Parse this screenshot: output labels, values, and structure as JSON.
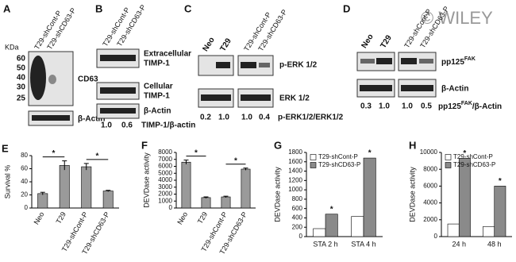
{
  "blots": {
    "A": {
      "panel": "A",
      "lanes": [
        "T29-shCont-P",
        "T29-shCD63-P"
      ],
      "unit": "KDa",
      "markers": [
        "60",
        "50",
        "40",
        "30",
        "25"
      ],
      "rows": [
        "CD63",
        "β-Actin"
      ]
    },
    "B": {
      "panel": "B",
      "lanes": [
        "T29-shCont-P",
        "T29-shCD63-P"
      ],
      "rows": [
        [
          "Extracellular",
          "TIMP-1"
        ],
        [
          "Cellular",
          "TIMP-1"
        ],
        [
          "β-Actin"
        ]
      ],
      "ratios": [
        "1.0",
        "0.6"
      ],
      "ratio_label": "TIMP-1/β-actin"
    },
    "C": {
      "panel": "C",
      "lanes": [
        "Neo",
        "T29",
        "T29-shCont-P",
        "T29-shCD63-P"
      ],
      "rows": [
        "p-ERK 1/2",
        "ERK 1/2"
      ],
      "ratios": [
        "0.2",
        "1.0",
        "1.0",
        "0.4"
      ],
      "ratio_label": "p-ERK1/2/ERK1/2"
    },
    "D": {
      "panel": "D",
      "lanes": [
        "Neo",
        "T29",
        "T29-shCont-P",
        "T29-shCD63-P"
      ],
      "row1": [
        "pp125",
        "FAK"
      ],
      "row2": "β-Actin",
      "ratios": [
        "0.3",
        "1.0",
        "1.0",
        "0.5"
      ],
      "ratio_label": [
        "pp125",
        "FAK",
        "/β-Actin"
      ],
      "watermark": "© WILEY"
    }
  },
  "chart_data": [
    {
      "type": "bar",
      "panel_label": "E",
      "y_label": "Survival %",
      "categories": [
        "Neo",
        "T29",
        "T29-shCont-P",
        "T29-shCD63-P"
      ],
      "values": [
        22,
        65,
        63,
        26
      ],
      "errors": [
        2,
        7,
        5,
        1
      ],
      "color": "#9a9a9a",
      "ylim": [
        0,
        80
      ],
      "yticks": [
        0,
        20,
        40,
        60,
        80
      ],
      "annotations": [
        "*",
        "*"
      ]
    },
    {
      "type": "bar",
      "panel_label": "F",
      "y_label": "DEVDase activity",
      "categories": [
        "Neo",
        "T29",
        "T29-shCont-P",
        "T29-shCD63-P"
      ],
      "values": [
        6600,
        1500,
        1600,
        5600
      ],
      "errors": [
        300,
        100,
        100,
        150
      ],
      "color": "#9a9a9a",
      "ylim": [
        0,
        8000
      ],
      "yticks": [
        0,
        1000,
        2000,
        3000,
        4000,
        5000,
        6000,
        7000,
        8000
      ],
      "annotations": [
        "*",
        "*"
      ]
    },
    {
      "type": "bar",
      "panel_label": "G",
      "y_label": "DEVDase activity",
      "categories": [
        "STA 2 h",
        "STA 4 h"
      ],
      "series": [
        {
          "name": "T29-shCont-P",
          "color": "#ffffff",
          "values": [
            170,
            430
          ]
        },
        {
          "name": "T29-shCD63-P",
          "color": "#8a8a8a",
          "values": [
            480,
            1680
          ]
        }
      ],
      "ylim": [
        0,
        1800
      ],
      "yticks": [
        0,
        200,
        400,
        600,
        800,
        1000,
        1200,
        1400,
        1600,
        1800
      ],
      "annotations": [
        "*",
        "*"
      ]
    },
    {
      "type": "bar",
      "panel_label": "H",
      "y_label": "DEVDase activity",
      "categories": [
        "24 h",
        "48 h"
      ],
      "series": [
        {
          "name": "T29-shCont-P",
          "color": "#ffffff",
          "values": [
            1500,
            1200
          ]
        },
        {
          "name": "T29-shCD63-P",
          "color": "#8a8a8a",
          "values": [
            9300,
            6000
          ]
        }
      ],
      "ylim": [
        0,
        10000
      ],
      "yticks": [
        0,
        2000,
        4000,
        6000,
        8000,
        10000
      ],
      "annotations": [
        "*",
        "*"
      ]
    }
  ]
}
